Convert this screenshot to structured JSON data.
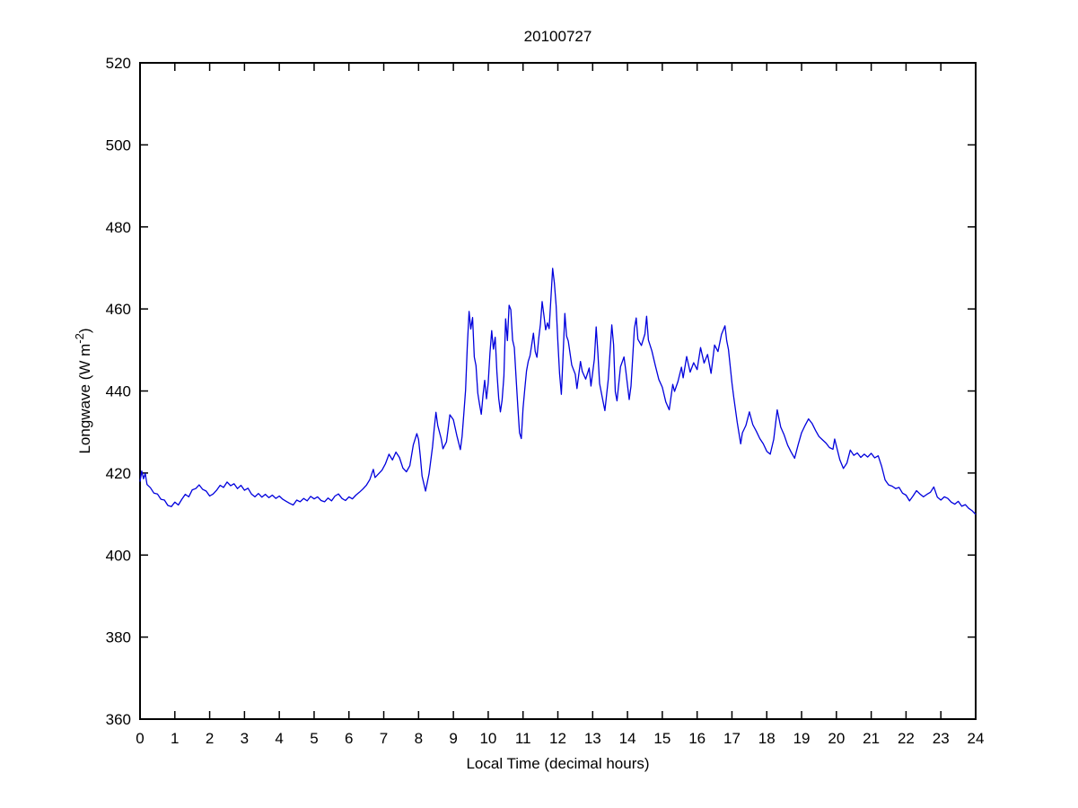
{
  "chart_data": {
    "type": "line",
    "title": "20100727",
    "xlabel": "Local Time (decimal hours)",
    "ylabel": "Longwave (W m-2)",
    "ylabel_parts": {
      "main": "Longwave (W m",
      "superscript": "-2",
      "close": ")"
    },
    "xlim": [
      0,
      24
    ],
    "ylim": [
      360,
      520
    ],
    "x_ticks": [
      0,
      1,
      2,
      3,
      4,
      5,
      6,
      7,
      8,
      9,
      10,
      11,
      12,
      13,
      14,
      15,
      16,
      17,
      18,
      19,
      20,
      21,
      22,
      23,
      24
    ],
    "y_ticks": [
      360,
      380,
      400,
      420,
      440,
      460,
      480,
      500,
      520
    ],
    "grid": false,
    "legend": null,
    "box": true,
    "tick_direction": "in",
    "line_color": "#0000DD",
    "axis_color": "#000000",
    "background_color": "#ffffff",
    "series": [
      {
        "name": "longwave",
        "points": [
          [
            0,
            417.9
          ],
          [
            0.05,
            420.5
          ],
          [
            0.1,
            418.6
          ],
          [
            0.15,
            419.9
          ],
          [
            0.2,
            417.2
          ],
          [
            0.3,
            416.4
          ],
          [
            0.4,
            415.1
          ],
          [
            0.5,
            414.9
          ],
          [
            0.6,
            413.6
          ],
          [
            0.7,
            413.4
          ],
          [
            0.8,
            412.1
          ],
          [
            0.9,
            411.8
          ],
          [
            1,
            412.9
          ],
          [
            1.1,
            412.2
          ],
          [
            1.2,
            413.6
          ],
          [
            1.3,
            414.8
          ],
          [
            1.4,
            414.2
          ],
          [
            1.5,
            415.9
          ],
          [
            1.6,
            416.2
          ],
          [
            1.7,
            417.1
          ],
          [
            1.8,
            416
          ],
          [
            1.9,
            415.6
          ],
          [
            2,
            414.4
          ],
          [
            2.1,
            414.9
          ],
          [
            2.2,
            415.8
          ],
          [
            2.3,
            417
          ],
          [
            2.4,
            416.5
          ],
          [
            2.5,
            417.8
          ],
          [
            2.6,
            416.9
          ],
          [
            2.7,
            417.4
          ],
          [
            2.8,
            416.2
          ],
          [
            2.9,
            417
          ],
          [
            3,
            415.8
          ],
          [
            3.1,
            416.3
          ],
          [
            3.2,
            414.9
          ],
          [
            3.3,
            414.2
          ],
          [
            3.4,
            415
          ],
          [
            3.5,
            414.1
          ],
          [
            3.6,
            414.8
          ],
          [
            3.7,
            414
          ],
          [
            3.8,
            414.6
          ],
          [
            3.9,
            413.8
          ],
          [
            4,
            414.4
          ],
          [
            4.1,
            413.6
          ],
          [
            4.2,
            413.1
          ],
          [
            4.3,
            412.6
          ],
          [
            4.4,
            412.2
          ],
          [
            4.5,
            413.4
          ],
          [
            4.6,
            413
          ],
          [
            4.7,
            413.8
          ],
          [
            4.8,
            413.2
          ],
          [
            4.9,
            414.3
          ],
          [
            5,
            413.7
          ],
          [
            5.1,
            414.2
          ],
          [
            5.2,
            413.3
          ],
          [
            5.3,
            413
          ],
          [
            5.4,
            413.9
          ],
          [
            5.5,
            413.2
          ],
          [
            5.6,
            414.4
          ],
          [
            5.7,
            414.9
          ],
          [
            5.8,
            413.8
          ],
          [
            5.9,
            413.3
          ],
          [
            6,
            414.2
          ],
          [
            6.1,
            413.7
          ],
          [
            6.2,
            414.6
          ],
          [
            6.3,
            415.3
          ],
          [
            6.4,
            416.1
          ],
          [
            6.5,
            417
          ],
          [
            6.6,
            418.4
          ],
          [
            6.7,
            420.9
          ],
          [
            6.75,
            418.9
          ],
          [
            6.85,
            419.8
          ],
          [
            6.95,
            420.7
          ],
          [
            7.05,
            422.3
          ],
          [
            7.15,
            424.6
          ],
          [
            7.25,
            423.2
          ],
          [
            7.35,
            425.1
          ],
          [
            7.45,
            423.8
          ],
          [
            7.55,
            421.2
          ],
          [
            7.65,
            420.3
          ],
          [
            7.75,
            421.8
          ],
          [
            7.85,
            426.9
          ],
          [
            7.95,
            429.6
          ],
          [
            8,
            428.2
          ],
          [
            8.05,
            424
          ],
          [
            8.1,
            419.3
          ],
          [
            8.2,
            415.6
          ],
          [
            8.3,
            419.8
          ],
          [
            8.4,
            426.4
          ],
          [
            8.45,
            430.9
          ],
          [
            8.5,
            434.8
          ],
          [
            8.55,
            431.6
          ],
          [
            8.65,
            428.4
          ],
          [
            8.7,
            425.9
          ],
          [
            8.8,
            427.6
          ],
          [
            8.85,
            430.8
          ],
          [
            8.9,
            434.2
          ],
          [
            9,
            433
          ],
          [
            9.1,
            429.1
          ],
          [
            9.2,
            425.7
          ],
          [
            9.25,
            428.9
          ],
          [
            9.3,
            434.6
          ],
          [
            9.35,
            440.2
          ],
          [
            9.4,
            450.8
          ],
          [
            9.45,
            459.4
          ],
          [
            9.5,
            455.1
          ],
          [
            9.55,
            457.9
          ],
          [
            9.6,
            448.3
          ],
          [
            9.65,
            446.2
          ],
          [
            9.7,
            439.5
          ],
          [
            9.75,
            436.8
          ],
          [
            9.8,
            434.3
          ],
          [
            9.85,
            438.9
          ],
          [
            9.9,
            442.6
          ],
          [
            9.95,
            438.1
          ],
          [
            10,
            441.9
          ],
          [
            10.05,
            449.3
          ],
          [
            10.1,
            454.7
          ],
          [
            10.15,
            450.2
          ],
          [
            10.2,
            453.1
          ],
          [
            10.25,
            444.6
          ],
          [
            10.3,
            438.2
          ],
          [
            10.35,
            434.9
          ],
          [
            10.4,
            437.8
          ],
          [
            10.45,
            443.6
          ],
          [
            10.5,
            457.6
          ],
          [
            10.55,
            452.3
          ],
          [
            10.6,
            460.9
          ],
          [
            10.65,
            459.8
          ],
          [
            10.7,
            452.4
          ],
          [
            10.75,
            450.6
          ],
          [
            10.8,
            443.1
          ],
          [
            10.85,
            436.2
          ],
          [
            10.9,
            429.8
          ],
          [
            10.95,
            428.4
          ],
          [
            11,
            435.7
          ],
          [
            11.05,
            440.3
          ],
          [
            11.1,
            444.9
          ],
          [
            11.15,
            447.2
          ],
          [
            11.2,
            448.6
          ],
          [
            11.25,
            451.3
          ],
          [
            11.3,
            454.1
          ],
          [
            11.35,
            449.6
          ],
          [
            11.4,
            448.2
          ],
          [
            11.45,
            452.8
          ],
          [
            11.5,
            456.3
          ],
          [
            11.55,
            461.8
          ],
          [
            11.6,
            458.4
          ],
          [
            11.65,
            454.9
          ],
          [
            11.7,
            456.6
          ],
          [
            11.75,
            455.2
          ],
          [
            11.8,
            462.3
          ],
          [
            11.85,
            469.9
          ],
          [
            11.9,
            466.4
          ],
          [
            11.95,
            460.8
          ],
          [
            12,
            452.1
          ],
          [
            12.05,
            444.3
          ],
          [
            12.1,
            439.2
          ],
          [
            12.15,
            448.6
          ],
          [
            12.2,
            458.9
          ],
          [
            12.25,
            453.4
          ],
          [
            12.3,
            452.2
          ],
          [
            12.4,
            446.3
          ],
          [
            12.5,
            444.1
          ],
          [
            12.55,
            440.6
          ],
          [
            12.65,
            447.2
          ],
          [
            12.7,
            444.8
          ],
          [
            12.8,
            442.9
          ],
          [
            12.9,
            445.6
          ],
          [
            12.95,
            441.2
          ],
          [
            13.05,
            447.8
          ],
          [
            13.1,
            455.6
          ],
          [
            13.15,
            449.3
          ],
          [
            13.2,
            441.8
          ],
          [
            13.3,
            437.4
          ],
          [
            13.35,
            435.2
          ],
          [
            13.45,
            442.9
          ],
          [
            13.55,
            456.1
          ],
          [
            13.6,
            451.3
          ],
          [
            13.65,
            439.8
          ],
          [
            13.7,
            437.6
          ],
          [
            13.8,
            445.9
          ],
          [
            13.9,
            448.3
          ],
          [
            13.95,
            445.1
          ],
          [
            14.05,
            437.9
          ],
          [
            14.1,
            441.2
          ],
          [
            14.2,
            455.3
          ],
          [
            14.25,
            457.8
          ],
          [
            14.3,
            452.6
          ],
          [
            14.4,
            451.1
          ],
          [
            14.5,
            453.9
          ],
          [
            14.55,
            458.2
          ],
          [
            14.6,
            452.4
          ],
          [
            14.7,
            449.8
          ],
          [
            14.8,
            446.2
          ],
          [
            14.9,
            442.8
          ],
          [
            15,
            440.9
          ],
          [
            15.1,
            437.3
          ],
          [
            15.2,
            435.4
          ],
          [
            15.3,
            441.6
          ],
          [
            15.35,
            439.9
          ],
          [
            15.45,
            442.3
          ],
          [
            15.55,
            445.8
          ],
          [
            15.6,
            443.2
          ],
          [
            15.7,
            448.4
          ],
          [
            15.8,
            444.6
          ],
          [
            15.9,
            446.9
          ],
          [
            16,
            445.2
          ],
          [
            16.1,
            450.6
          ],
          [
            16.2,
            446.8
          ],
          [
            16.3,
            448.9
          ],
          [
            16.4,
            444.3
          ],
          [
            16.5,
            451.2
          ],
          [
            16.6,
            449.6
          ],
          [
            16.7,
            453.8
          ],
          [
            16.8,
            455.9
          ],
          [
            16.85,
            452.3
          ],
          [
            16.9,
            450.1
          ],
          [
            17,
            441.9
          ],
          [
            17.05,
            438.6
          ],
          [
            17.15,
            432.4
          ],
          [
            17.25,
            427.1
          ],
          [
            17.3,
            429.8
          ],
          [
            17.4,
            431.6
          ],
          [
            17.5,
            434.9
          ],
          [
            17.6,
            431.8
          ],
          [
            17.7,
            430.2
          ],
          [
            17.8,
            428.4
          ],
          [
            17.9,
            427.1
          ],
          [
            18,
            425.3
          ],
          [
            18.1,
            424.6
          ],
          [
            18.2,
            428.2
          ],
          [
            18.3,
            435.4
          ],
          [
            18.4,
            431.2
          ],
          [
            18.5,
            429.3
          ],
          [
            18.6,
            426.8
          ],
          [
            18.7,
            425.1
          ],
          [
            18.8,
            423.6
          ],
          [
            18.9,
            426.9
          ],
          [
            19,
            429.8
          ],
          [
            19.1,
            431.6
          ],
          [
            19.2,
            433.2
          ],
          [
            19.3,
            432.1
          ],
          [
            19.4,
            430.4
          ],
          [
            19.5,
            428.9
          ],
          [
            19.6,
            428.1
          ],
          [
            19.7,
            427.3
          ],
          [
            19.8,
            426.2
          ],
          [
            19.9,
            425.8
          ],
          [
            19.95,
            428.3
          ],
          [
            20.1,
            423.2
          ],
          [
            20.2,
            421.1
          ],
          [
            20.3,
            422.4
          ],
          [
            20.4,
            425.6
          ],
          [
            20.5,
            424.3
          ],
          [
            20.6,
            424.9
          ],
          [
            20.7,
            423.8
          ],
          [
            20.8,
            424.6
          ],
          [
            20.9,
            423.9
          ],
          [
            21,
            424.8
          ],
          [
            21.1,
            423.7
          ],
          [
            21.2,
            424.2
          ],
          [
            21.3,
            421.6
          ],
          [
            21.4,
            418.3
          ],
          [
            21.5,
            417.1
          ],
          [
            21.6,
            416.8
          ],
          [
            21.7,
            416.2
          ],
          [
            21.8,
            416.5
          ],
          [
            21.9,
            415.1
          ],
          [
            22,
            414.6
          ],
          [
            22.1,
            413.2
          ],
          [
            22.2,
            414.4
          ],
          [
            22.3,
            415.7
          ],
          [
            22.4,
            414.9
          ],
          [
            22.5,
            414.2
          ],
          [
            22.6,
            414.8
          ],
          [
            22.7,
            415.3
          ],
          [
            22.8,
            416.6
          ],
          [
            22.9,
            414.1
          ],
          [
            23,
            413.4
          ],
          [
            23.1,
            414.2
          ],
          [
            23.2,
            413.8
          ],
          [
            23.3,
            412.9
          ],
          [
            23.4,
            412.4
          ],
          [
            23.5,
            413.1
          ],
          [
            23.6,
            411.9
          ],
          [
            23.7,
            412.3
          ],
          [
            23.8,
            411.4
          ],
          [
            23.9,
            410.8
          ],
          [
            24,
            409.9
          ]
        ]
      }
    ]
  }
}
